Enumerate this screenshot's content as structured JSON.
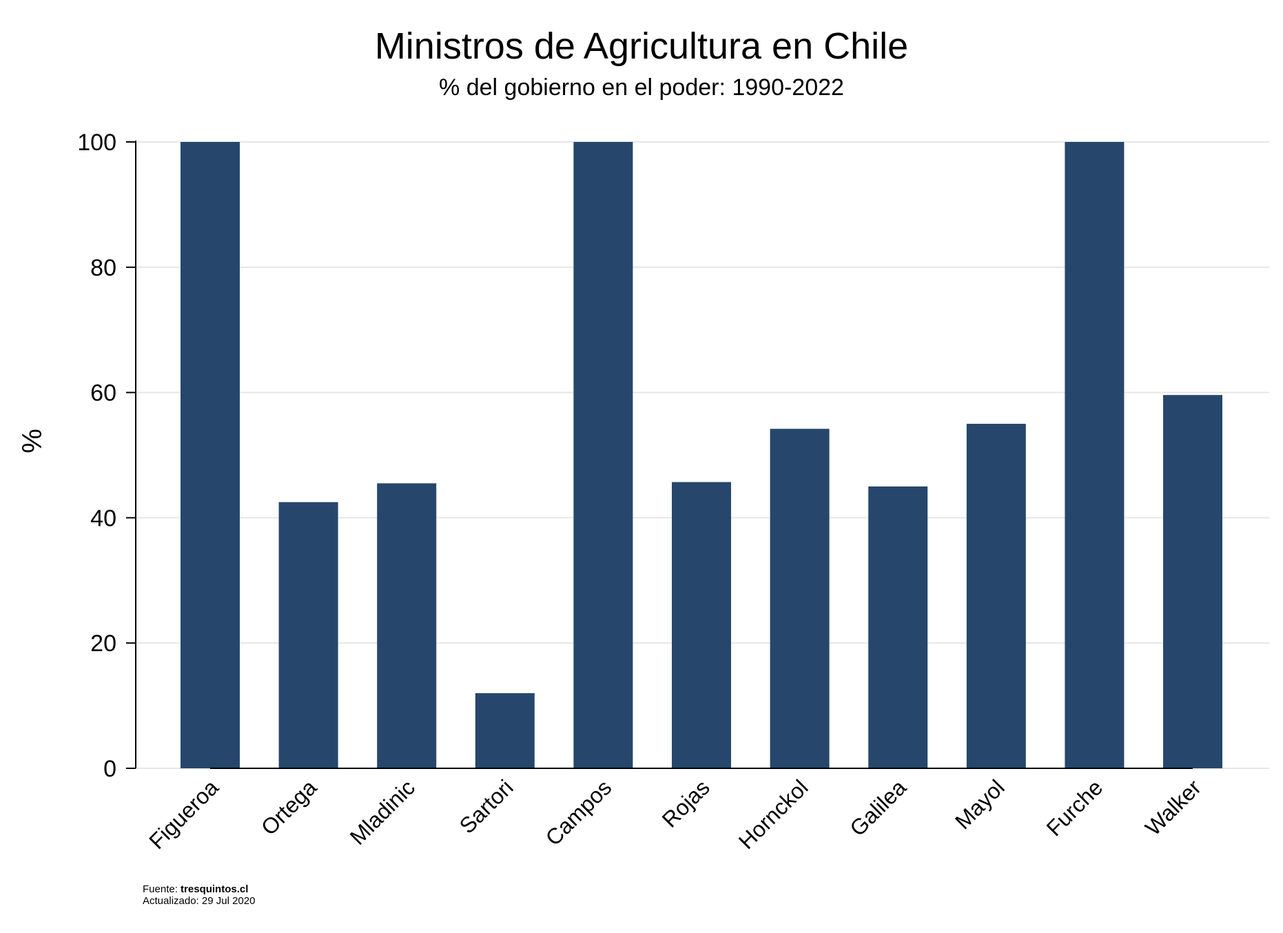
{
  "chart_data": {
    "type": "bar",
    "title": "Ministros de Agricultura en Chile",
    "subtitle": "% del gobierno en el poder: 1990-2022",
    "xlabel": "",
    "ylabel": "%",
    "ylim": [
      0,
      100
    ],
    "yticks": [
      0,
      20,
      40,
      60,
      80,
      100
    ],
    "ytick_labels": [
      "0",
      "20",
      "40",
      "60",
      "80",
      "100"
    ],
    "grid": true,
    "bar_color": "#26476b",
    "categories": [
      "Figueroa",
      "Ortega",
      "Mladinic",
      "Sartori",
      "Campos",
      "Rojas",
      "Hornckol",
      "Galilea",
      "Mayol",
      "Furche",
      "Walker"
    ],
    "values": [
      100,
      42.5,
      45.5,
      12,
      100,
      45.7,
      54.2,
      45,
      55,
      100,
      59.6
    ]
  },
  "footer": {
    "source_label": "Fuente:",
    "source_value": "tresquintos.cl",
    "updated": "Actualizado: 29 Jul 2020"
  }
}
